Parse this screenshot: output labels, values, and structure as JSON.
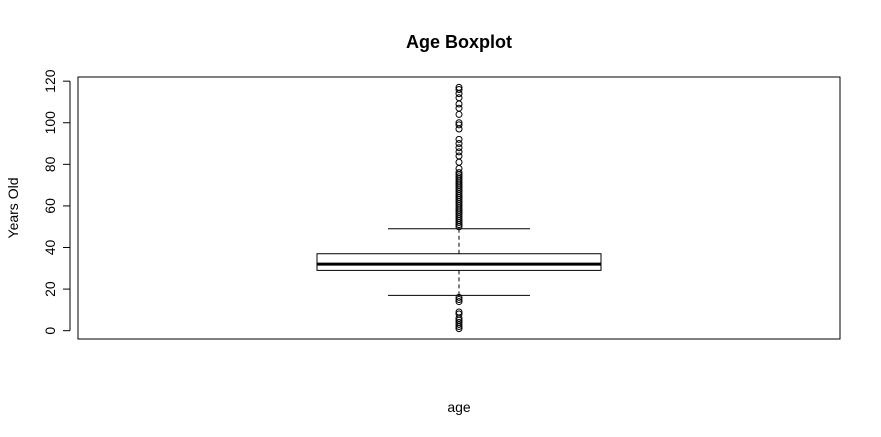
{
  "chart_data": {
    "type": "boxplot",
    "title": "Age Boxplot",
    "xlabel": "age",
    "ylabel": "Years Old",
    "ylim": [
      -4,
      122
    ],
    "yticks": [
      0,
      20,
      40,
      60,
      80,
      100,
      120
    ],
    "grid": false,
    "box": {
      "lower_whisker": 17,
      "q1": 29,
      "median": 32,
      "q3": 37,
      "upper_whisker": 49
    },
    "outliers": [
      1,
      2,
      3,
      4,
      5,
      6,
      8,
      9,
      14,
      15,
      16,
      50,
      51,
      52,
      53,
      54,
      55,
      56,
      57,
      58,
      59,
      60,
      61,
      62,
      63,
      64,
      65,
      66,
      67,
      68,
      69,
      70,
      71,
      72,
      73,
      74,
      75,
      76,
      78,
      81,
      84,
      86,
      88,
      90,
      92,
      97,
      99,
      100,
      104,
      107,
      109,
      112,
      114,
      116,
      117
    ]
  }
}
